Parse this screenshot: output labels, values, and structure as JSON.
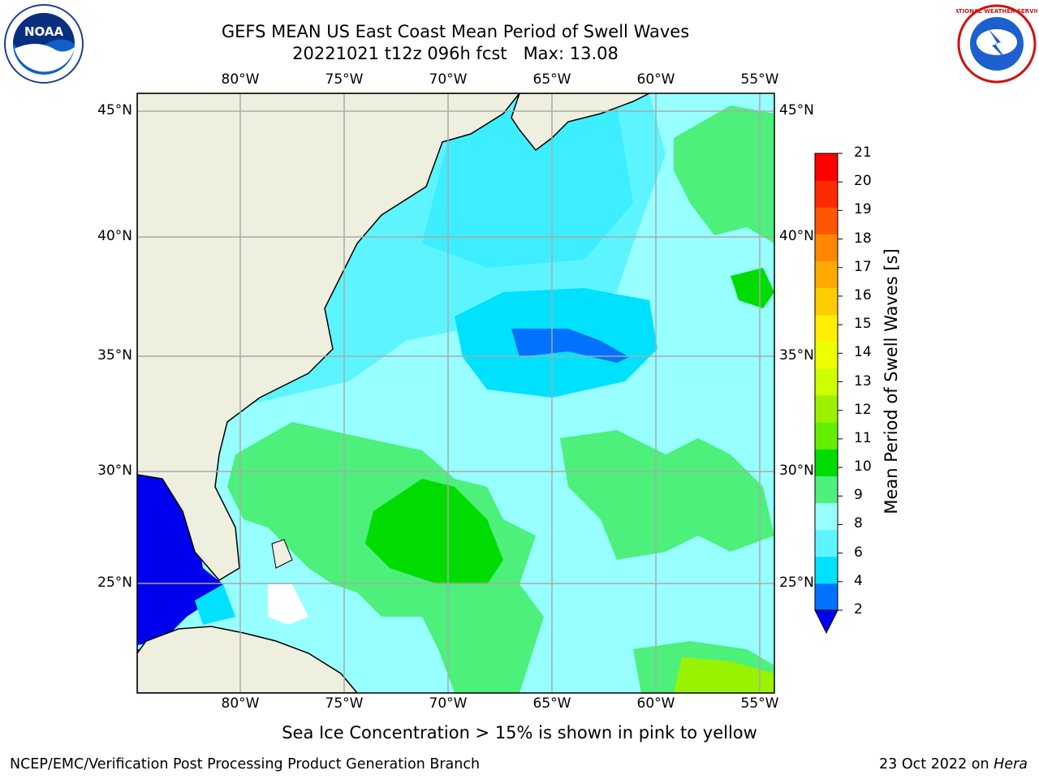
{
  "header": {
    "title_line1": "GEFS MEAN US East Coast Mean Period of Swell Waves",
    "title_line2": "20221021 t12z 096h fcst   Max: 13.08"
  },
  "logos": {
    "left": {
      "icon": "noaa-logo",
      "text": "NOAA"
    },
    "right": {
      "icon": "national-weather-service-logo",
      "text": "NATIONAL WEATHER SERVICE"
    }
  },
  "map": {
    "lon_ticks": [
      "80°W",
      "75°W",
      "70°W",
      "65°W",
      "60°W",
      "55°W"
    ],
    "lat_ticks": [
      "45°N",
      "40°N",
      "35°N",
      "30°N",
      "25°N"
    ],
    "land_color": "#efefdf",
    "gridline_color": "#aaaaaa"
  },
  "colorbar": {
    "label": "Mean Period of Swell Waves [s]",
    "ticks": [
      "21",
      "20",
      "19",
      "18",
      "17",
      "16",
      "15",
      "14",
      "13",
      "12",
      "11",
      "10",
      "9",
      "8",
      "6",
      "4",
      "2"
    ],
    "colors_bottom_to_top": [
      "#0072ff",
      "#00e1ff",
      "#5cf5ff",
      "#97ffff",
      "#4cf07a",
      "#00dc00",
      "#66ee00",
      "#99f200",
      "#ccff00",
      "#eeff00",
      "#ffee00",
      "#ffcc00",
      "#ffaa00",
      "#ff8800",
      "#ff5500",
      "#ff2a00",
      "#ff0000"
    ],
    "under_color": "#0000ee"
  },
  "notes": {
    "sea_ice": "Sea Ice Concentration > 15% is shown in pink to yellow"
  },
  "footer": {
    "left": "NCEP/EMC/Verification Post Processing Product Generation Branch",
    "right_prefix": "23 Oct 2022 on ",
    "right_host": "Hera"
  }
}
